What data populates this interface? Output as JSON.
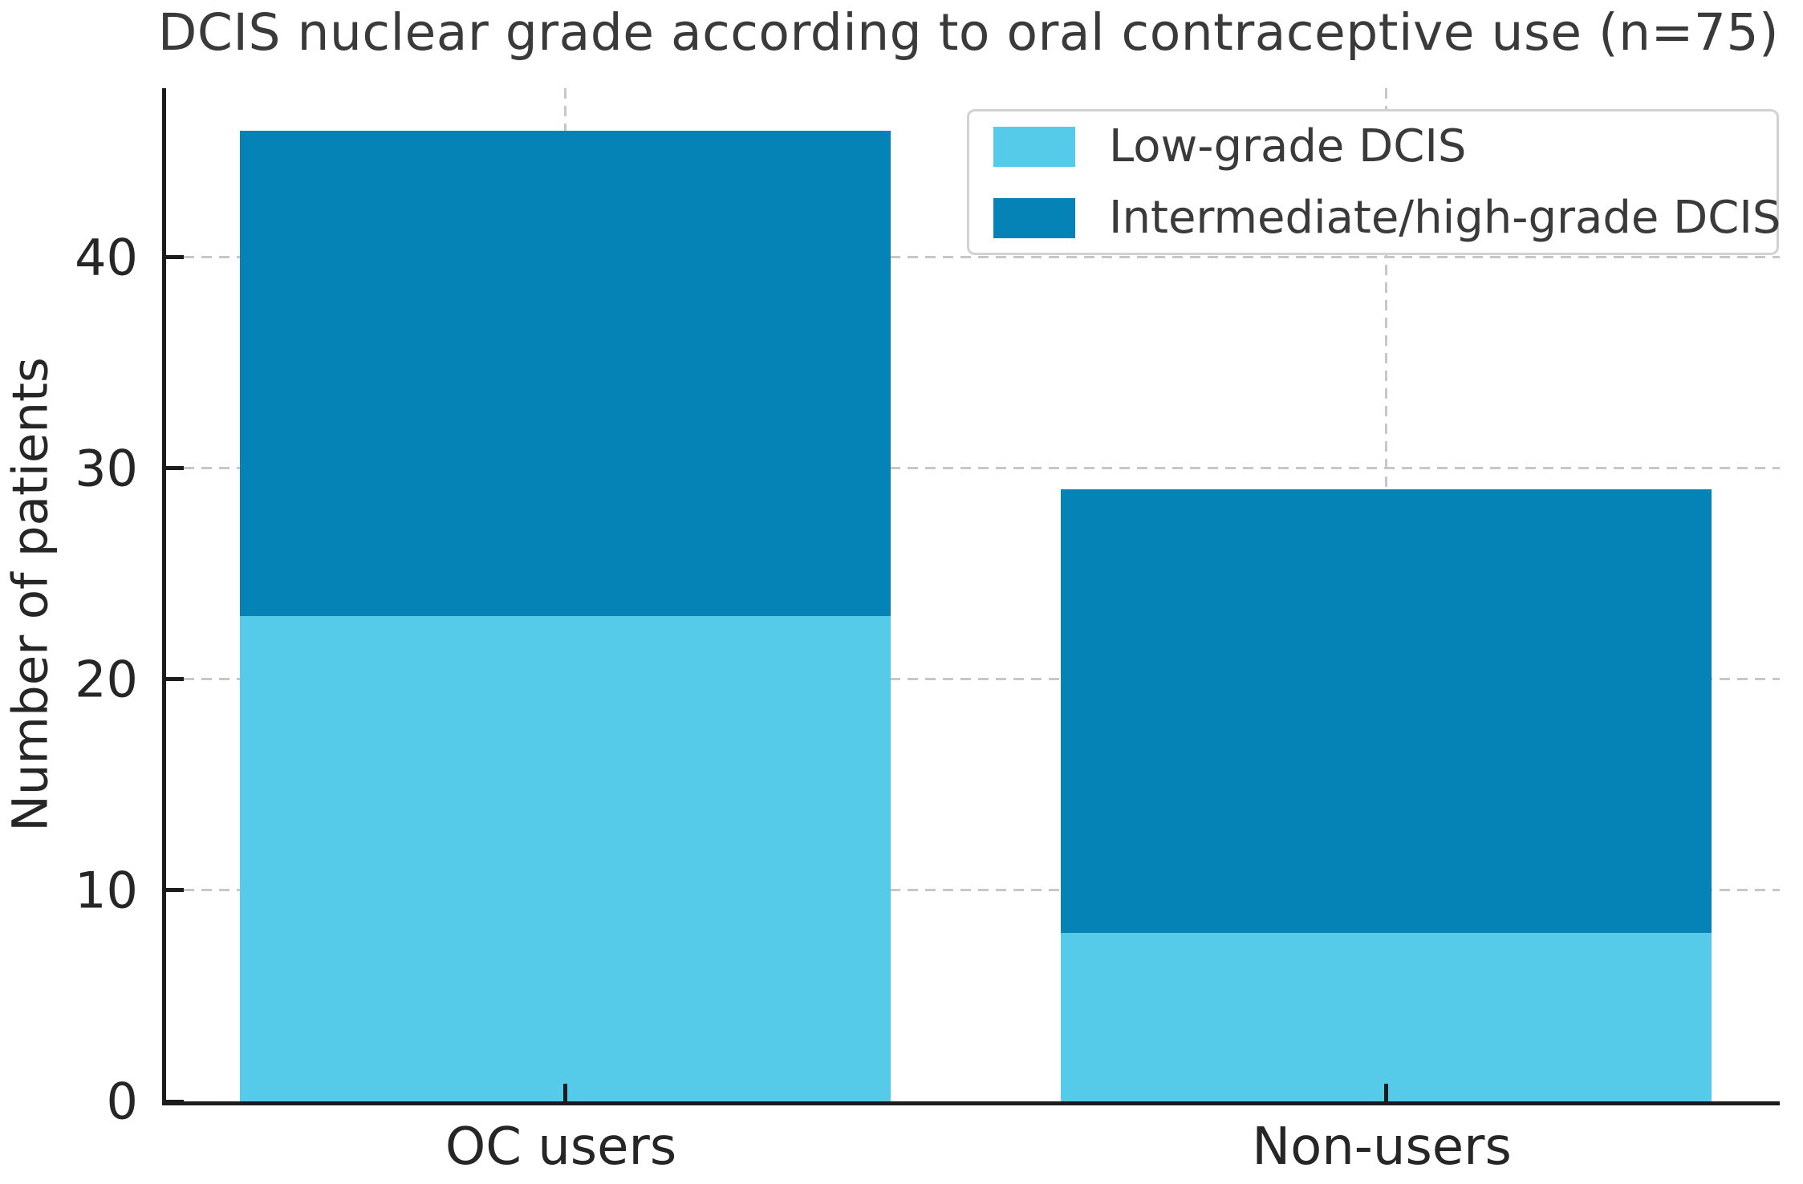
{
  "chart_data": {
    "type": "bar",
    "stacked": true,
    "title": "DCIS nuclear grade according to oral contraceptive use (n=75)",
    "ylabel": "Number of patients",
    "xlabel": "",
    "categories": [
      "OC users",
      "Non-users"
    ],
    "series": [
      {
        "name": "Low-grade DCIS",
        "color": "#56CBE9",
        "values": [
          23,
          8
        ]
      },
      {
        "name": "Intermediate/high-grade DCIS",
        "color": "#0583B7",
        "values": [
          23,
          21
        ]
      }
    ],
    "stack_totals": [
      46,
      29
    ],
    "ylim": [
      0,
      48
    ],
    "yticks": [
      0,
      10,
      20,
      30,
      40
    ],
    "grid": "dashed-both-axes",
    "legend_position": "upper-right",
    "colors": {
      "grid": "#c7c7c7",
      "spine": "#1c1c1c",
      "title_text": "#3a3a3a",
      "tick_text": "#262626",
      "legend_border": "#d2d2d2",
      "background": "#ffffff"
    }
  }
}
